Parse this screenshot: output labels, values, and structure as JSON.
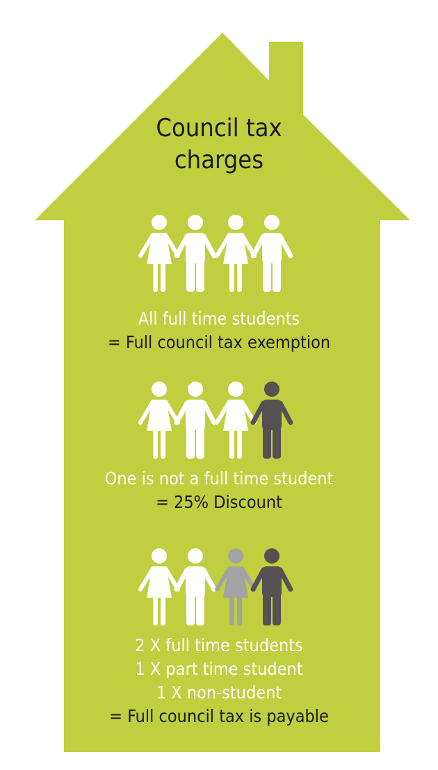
{
  "title": [
    "Council tax",
    "charges"
  ],
  "colors": {
    "house": "#bfcf3f",
    "full_time_student": "#ffffff",
    "part_time_student": "#a3a3a3",
    "non_student": "#555152"
  },
  "scenarios": [
    {
      "people": [
        {
          "type": "female",
          "status": "full_time_student"
        },
        {
          "type": "male",
          "status": "full_time_student"
        },
        {
          "type": "female",
          "status": "full_time_student"
        },
        {
          "type": "male",
          "status": "full_time_student"
        }
      ],
      "lines": [
        "All full time students"
      ],
      "result": "= Full council tax exemption"
    },
    {
      "people": [
        {
          "type": "female",
          "status": "full_time_student"
        },
        {
          "type": "male",
          "status": "full_time_student"
        },
        {
          "type": "female",
          "status": "full_time_student"
        },
        {
          "type": "male",
          "status": "non_student"
        }
      ],
      "lines": [
        "One is not a full time student"
      ],
      "result": "= 25% Discount"
    },
    {
      "people": [
        {
          "type": "female",
          "status": "full_time_student"
        },
        {
          "type": "male",
          "status": "full_time_student"
        },
        {
          "type": "female",
          "status": "part_time_student"
        },
        {
          "type": "male",
          "status": "non_student"
        }
      ],
      "lines": [
        "2 X full time students",
        "1 X part time student",
        "1 X non-student"
      ],
      "result": "= Full council tax is payable"
    }
  ]
}
